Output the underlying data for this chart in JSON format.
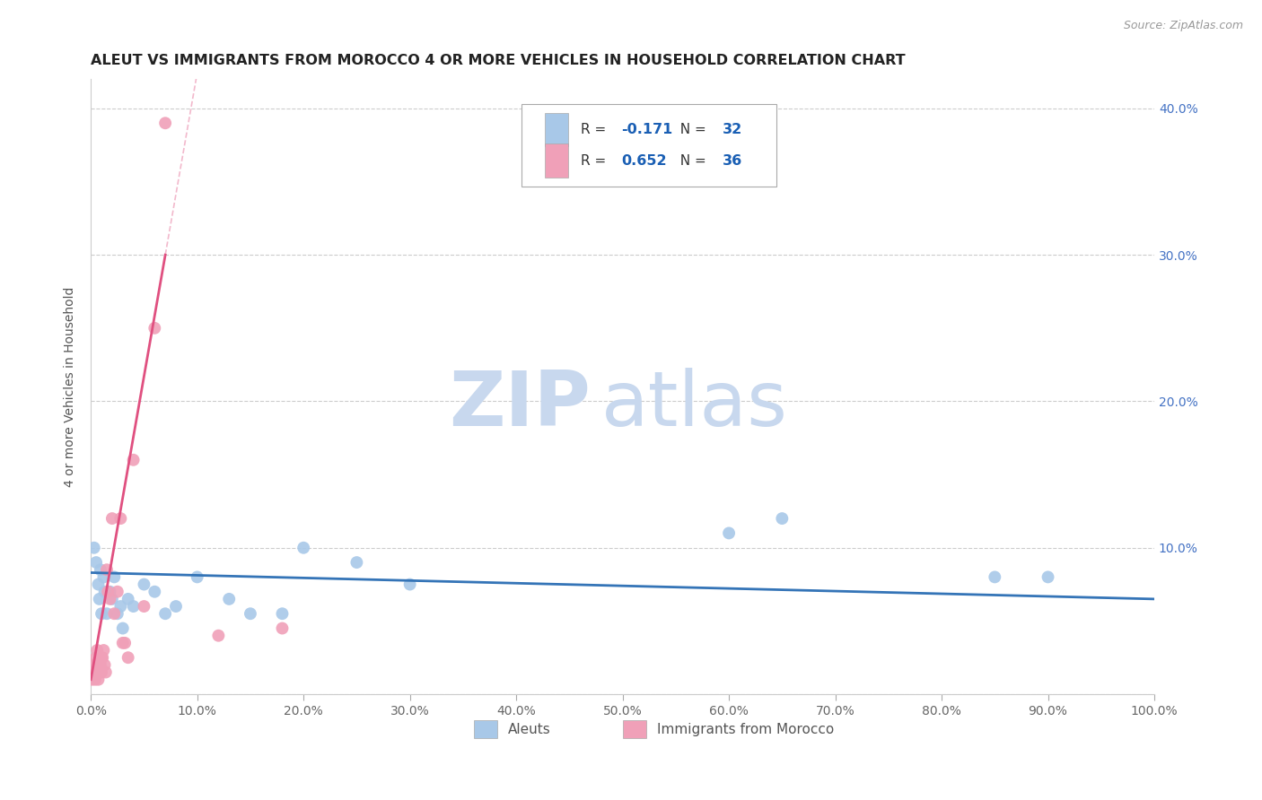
{
  "title": "ALEUT VS IMMIGRANTS FROM MOROCCO 4 OR MORE VEHICLES IN HOUSEHOLD CORRELATION CHART",
  "source": "Source: ZipAtlas.com",
  "ylabel": "4 or more Vehicles in Household",
  "xlim": [
    0.0,
    1.0
  ],
  "ylim": [
    0.0,
    0.42
  ],
  "xticks": [
    0.0,
    0.1,
    0.2,
    0.3,
    0.4,
    0.5,
    0.6,
    0.7,
    0.8,
    0.9,
    1.0
  ],
  "xtick_labels": [
    "0.0%",
    "10.0%",
    "20.0%",
    "30.0%",
    "40.0%",
    "50.0%",
    "60.0%",
    "70.0%",
    "80.0%",
    "90.0%",
    "100.0%"
  ],
  "yticks": [
    0.0,
    0.1,
    0.2,
    0.3,
    0.4
  ],
  "ytick_labels": [
    "",
    "10.0%",
    "20.0%",
    "30.0%",
    "40.0%"
  ],
  "legend_r_aleut": "-0.171",
  "legend_n_aleut": "32",
  "legend_r_morocco": "0.652",
  "legend_n_morocco": "36",
  "color_aleut": "#a8c8e8",
  "color_morocco": "#f0a0b8",
  "line_color_aleut": "#3474b7",
  "line_color_morocco": "#e05080",
  "watermark_zip": "ZIP",
  "watermark_atlas": "atlas",
  "watermark_color_zip": "#c8d8ee",
  "watermark_color_atlas": "#c8d8ee",
  "aleut_x": [
    0.003,
    0.005,
    0.007,
    0.008,
    0.009,
    0.01,
    0.012,
    0.013,
    0.015,
    0.018,
    0.02,
    0.022,
    0.025,
    0.028,
    0.03,
    0.035,
    0.04,
    0.05,
    0.06,
    0.07,
    0.08,
    0.1,
    0.13,
    0.15,
    0.18,
    0.2,
    0.25,
    0.3,
    0.6,
    0.65,
    0.85,
    0.9
  ],
  "aleut_y": [
    0.1,
    0.09,
    0.075,
    0.065,
    0.085,
    0.055,
    0.08,
    0.07,
    0.055,
    0.07,
    0.065,
    0.08,
    0.055,
    0.06,
    0.045,
    0.065,
    0.06,
    0.075,
    0.07,
    0.055,
    0.06,
    0.08,
    0.065,
    0.055,
    0.055,
    0.1,
    0.09,
    0.075,
    0.11,
    0.12,
    0.08,
    0.08
  ],
  "morocco_x": [
    0.001,
    0.002,
    0.003,
    0.004,
    0.004,
    0.005,
    0.005,
    0.006,
    0.006,
    0.007,
    0.007,
    0.008,
    0.008,
    0.009,
    0.01,
    0.01,
    0.011,
    0.012,
    0.013,
    0.014,
    0.015,
    0.016,
    0.018,
    0.02,
    0.022,
    0.025,
    0.028,
    0.03,
    0.032,
    0.035,
    0.04,
    0.05,
    0.06,
    0.07,
    0.12,
    0.18
  ],
  "morocco_y": [
    0.01,
    0.02,
    0.015,
    0.01,
    0.02,
    0.025,
    0.015,
    0.02,
    0.03,
    0.01,
    0.015,
    0.015,
    0.02,
    0.02,
    0.015,
    0.025,
    0.025,
    0.03,
    0.02,
    0.015,
    0.085,
    0.07,
    0.065,
    0.12,
    0.055,
    0.07,
    0.12,
    0.035,
    0.035,
    0.025,
    0.16,
    0.06,
    0.25,
    0.39,
    0.04,
    0.045
  ],
  "morocco_line_x0": 0.0,
  "morocco_line_x1": 0.07,
  "morocco_line_x_dash0": 0.07,
  "morocco_line_x_dash1": 0.42,
  "aleut_line_x0": 0.0,
  "aleut_line_x1": 1.0
}
